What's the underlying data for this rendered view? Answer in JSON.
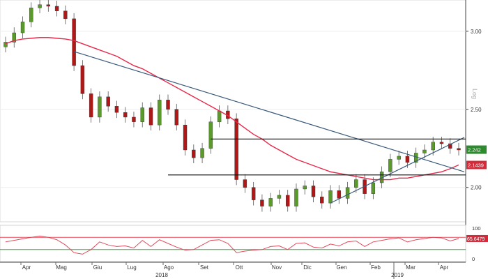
{
  "toolbar": {
    "icons": [
      "expand-icon",
      "draw-icon",
      "settings-icon",
      "zoom-icon"
    ],
    "badge": "0"
  },
  "side_tag": "Log",
  "watermark": "",
  "colors": {
    "candle_up": "#5a9a2a",
    "candle_down": "#b01818",
    "moving_average": "#e8284a",
    "trendline": "#3a5a7a",
    "level_line": "#111111",
    "price_label_green": "#2e8a2e",
    "price_label_red": "#d42a3a",
    "rsi_line": "#e04a5a",
    "rsi_upper_band": "#e84a5a",
    "rsi_lower_band": "#3aaa3a"
  },
  "chart_data": {
    "type": "candlestick",
    "price_axis": {
      "ticks": [
        2.0,
        2.5,
        3.0
      ],
      "tick_labels": [
        "2.00",
        "2.50",
        "3.00"
      ],
      "ylim": [
        1.78,
        3.2
      ]
    },
    "x_axis": {
      "months": [
        "Apr",
        "Mag",
        "Giu",
        "Lug",
        "Ago",
        "Set",
        "Ott",
        "Nov",
        "Dic",
        "Gen",
        "Feb",
        "Mar",
        "Apr"
      ],
      "years": [
        "2018",
        "2019"
      ]
    },
    "price_labels": [
      {
        "text": "2.242",
        "value": 2.242,
        "color": "green"
      },
      {
        "text": "2.1439",
        "value": 2.1439,
        "color": "red"
      }
    ],
    "weekly_close": [
      2.93,
      2.99,
      3.06,
      3.15,
      3.17,
      3.16,
      3.13,
      3.08,
      2.78,
      2.6,
      2.45,
      2.58,
      2.52,
      2.48,
      2.45,
      2.42,
      2.51,
      2.4,
      2.56,
      2.5,
      2.4,
      2.24,
      2.19,
      2.25,
      2.42,
      2.49,
      2.44,
      2.05,
      2.0,
      1.92,
      1.88,
      1.93,
      1.95,
      1.88,
      1.99,
      2.01,
      1.94,
      1.9,
      1.98,
      1.93,
      2.0,
      2.05,
      1.96,
      2.03,
      2.1,
      2.18,
      2.2,
      2.16,
      2.22,
      2.24,
      2.29,
      2.28,
      2.25,
      2.24
    ],
    "moving_average": [
      2.92,
      2.94,
      2.95,
      2.955,
      2.96,
      2.96,
      2.955,
      2.95,
      2.94,
      2.92,
      2.9,
      2.88,
      2.86,
      2.84,
      2.81,
      2.78,
      2.76,
      2.73,
      2.7,
      2.67,
      2.64,
      2.61,
      2.58,
      2.55,
      2.52,
      2.49,
      2.46,
      2.42,
      2.38,
      2.34,
      2.31,
      2.27,
      2.24,
      2.21,
      2.18,
      2.16,
      2.14,
      2.12,
      2.1,
      2.09,
      2.08,
      2.07,
      2.06,
      2.05,
      2.05,
      2.05,
      2.06,
      2.06,
      2.07,
      2.08,
      2.09,
      2.1,
      2.12,
      2.144
    ],
    "trendlines": [
      {
        "name": "resistance",
        "from": [
          8,
          2.87
        ],
        "to": [
          53,
          2.1
        ]
      },
      {
        "name": "support",
        "from": [
          38,
          1.9
        ],
        "to": [
          53,
          2.32
        ]
      }
    ],
    "horizontal_levels": [
      {
        "value": 2.31,
        "from": 24,
        "to": 53
      },
      {
        "value": 2.08,
        "from": 19,
        "to": 53
      }
    ],
    "rsi": {
      "axis_ticks": [
        "100",
        "0"
      ],
      "label": "65.6479",
      "upper_band": 70,
      "lower_band": 30,
      "values": [
        55,
        60,
        65,
        70,
        74,
        70,
        62,
        45,
        20,
        15,
        30,
        55,
        45,
        40,
        42,
        35,
        60,
        40,
        62,
        50,
        38,
        28,
        30,
        45,
        60,
        62,
        50,
        20,
        25,
        28,
        30,
        40,
        42,
        30,
        50,
        52,
        38,
        35,
        48,
        42,
        55,
        58,
        40,
        55,
        60,
        65,
        68,
        55,
        62,
        66,
        70,
        68,
        58,
        66
      ]
    }
  }
}
